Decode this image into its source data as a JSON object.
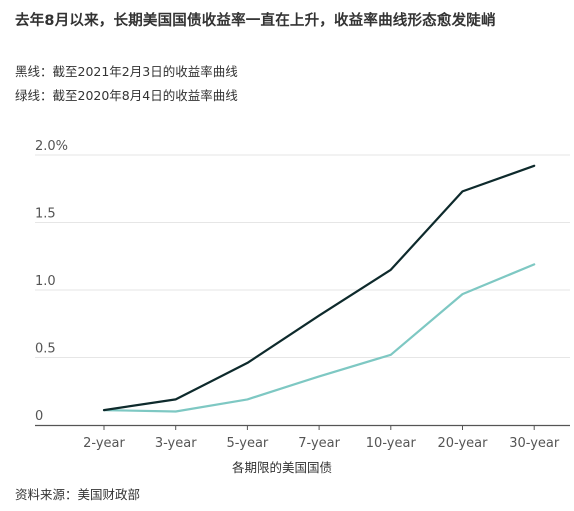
{
  "title": "去年8月以来，长期美国国债收益率一直在上升，收益率曲线形态愈发陡峭",
  "legend": {
    "black": "黑线：截至2021年2月3日的收益率曲线",
    "green": "绿线：截至2020年8月4日的收益率曲线"
  },
  "source": "资料来源：美国财政部",
  "colors": {
    "black_line": "#0e2a2c",
    "green_line": "#7ec8c3",
    "grid": "#e6e6e6",
    "axis": "#555555"
  },
  "chart_data": {
    "type": "line",
    "categories": [
      "2-year",
      "3-year",
      "5-year",
      "7-year",
      "10-year",
      "20-year",
      "30-year"
    ],
    "series": [
      {
        "values": [
          0.11,
          0.19,
          0.46,
          0.81,
          1.15,
          1.73,
          1.92
        ]
      },
      {
        "values": [
          0.11,
          0.1,
          0.19,
          0.36,
          0.52,
          0.97,
          1.19
        ]
      }
    ],
    "xlabel": "各期限的美国国债",
    "ylabel": "",
    "yticks": [
      "0",
      "0.5",
      "1.0",
      "1.5",
      "2.0%"
    ],
    "ylim": [
      0,
      2.0
    ],
    "grid": true
  }
}
